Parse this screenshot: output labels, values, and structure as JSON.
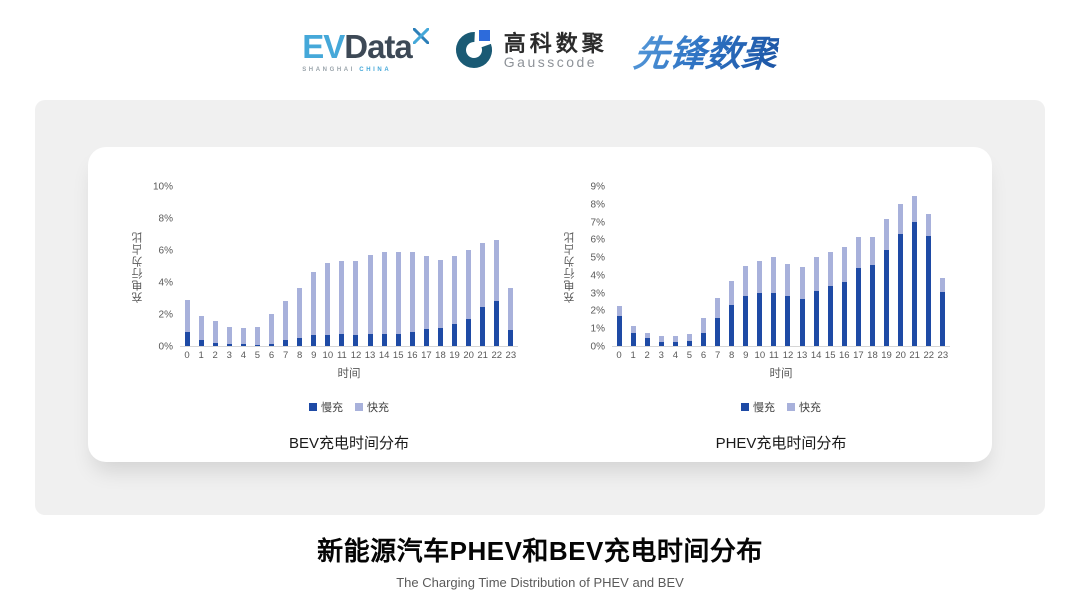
{
  "header": {
    "logos": {
      "evdata": {
        "ev": "EV",
        "data": "Data",
        "subtitle_left": "SHANGHAI",
        "subtitle_right": "CHINA",
        "color_ev": "#45a8d9",
        "color_data": "#3d4956"
      },
      "gausscode": {
        "name_cn": "高科数聚",
        "name_en": "Gausscode",
        "icon_ring_color": "#1a5a74",
        "icon_square_color": "#2d6bdb"
      },
      "pioneer": {
        "text": "先锋数聚",
        "color_start": "#5a9ddb",
        "color_end": "#1c54a4"
      }
    }
  },
  "chart_data": [
    {
      "type": "bar",
      "stacked": true,
      "title": "BEV充电时间分布",
      "xlabel": "时间",
      "ylabel": "充电行为占比",
      "ylim": [
        0,
        10
      ],
      "yticks": [
        "0%",
        "2%",
        "4%",
        "6%",
        "8%",
        "10%"
      ],
      "ytick_values": [
        0,
        2,
        4,
        6,
        8,
        10
      ],
      "grid": false,
      "legend_position": "bottom",
      "categories": [
        "0",
        "1",
        "2",
        "3",
        "4",
        "5",
        "6",
        "7",
        "8",
        "9",
        "10",
        "11",
        "12",
        "13",
        "14",
        "15",
        "16",
        "17",
        "18",
        "19",
        "20",
        "21",
        "22",
        "23"
      ],
      "series": [
        {
          "name": "慢充",
          "color": "#1e4aa5",
          "values": [
            0.85,
            0.35,
            0.2,
            0.12,
            0.1,
            0.07,
            0.15,
            0.35,
            0.5,
            0.7,
            0.7,
            0.75,
            0.7,
            0.72,
            0.75,
            0.75,
            0.9,
            1.05,
            1.15,
            1.4,
            1.7,
            2.45,
            2.8,
            1.0
          ]
        },
        {
          "name": "快充",
          "color": "#a8b1db",
          "values": [
            2.05,
            1.55,
            1.35,
            1.08,
            1.0,
            1.13,
            1.85,
            2.45,
            3.1,
            3.9,
            4.5,
            4.55,
            4.6,
            4.98,
            5.1,
            5.1,
            5.0,
            4.55,
            4.25,
            4.25,
            4.3,
            4.0,
            3.8,
            2.6
          ]
        }
      ]
    },
    {
      "type": "bar",
      "stacked": true,
      "title": "PHEV充电时间分布",
      "xlabel": "时间",
      "ylabel": "充电行为占比",
      "ylim": [
        0,
        9
      ],
      "yticks": [
        "0%",
        "1%",
        "2%",
        "3%",
        "4%",
        "5%",
        "6%",
        "7%",
        "8%",
        "9%"
      ],
      "ytick_values": [
        0,
        1,
        2,
        3,
        4,
        5,
        6,
        7,
        8,
        9
      ],
      "grid": false,
      "legend_position": "bottom",
      "categories": [
        "0",
        "1",
        "2",
        "3",
        "4",
        "5",
        "6",
        "7",
        "8",
        "9",
        "10",
        "11",
        "12",
        "13",
        "14",
        "15",
        "16",
        "17",
        "18",
        "19",
        "20",
        "21",
        "22",
        "23"
      ],
      "series": [
        {
          "name": "慢充",
          "color": "#1e4aa5",
          "values": [
            1.7,
            0.75,
            0.45,
            0.25,
            0.25,
            0.3,
            0.75,
            1.6,
            2.3,
            2.8,
            3.0,
            3.0,
            2.8,
            2.65,
            3.1,
            3.35,
            3.6,
            4.4,
            4.55,
            5.4,
            6.3,
            7.0,
            6.2,
            3.05
          ]
        },
        {
          "name": "快充",
          "color": "#a8b1db",
          "values": [
            0.55,
            0.4,
            0.3,
            0.3,
            0.3,
            0.4,
            0.85,
            1.1,
            1.35,
            1.7,
            1.8,
            2.0,
            1.8,
            1.8,
            1.9,
            1.95,
            1.95,
            1.75,
            1.6,
            1.75,
            1.7,
            1.45,
            1.25,
            0.8
          ]
        }
      ]
    }
  ],
  "footer": {
    "title": "新能源汽车PHEV和BEV充电时间分布",
    "subtitle": "The Charging Time Distribution of PHEV and BEV"
  }
}
